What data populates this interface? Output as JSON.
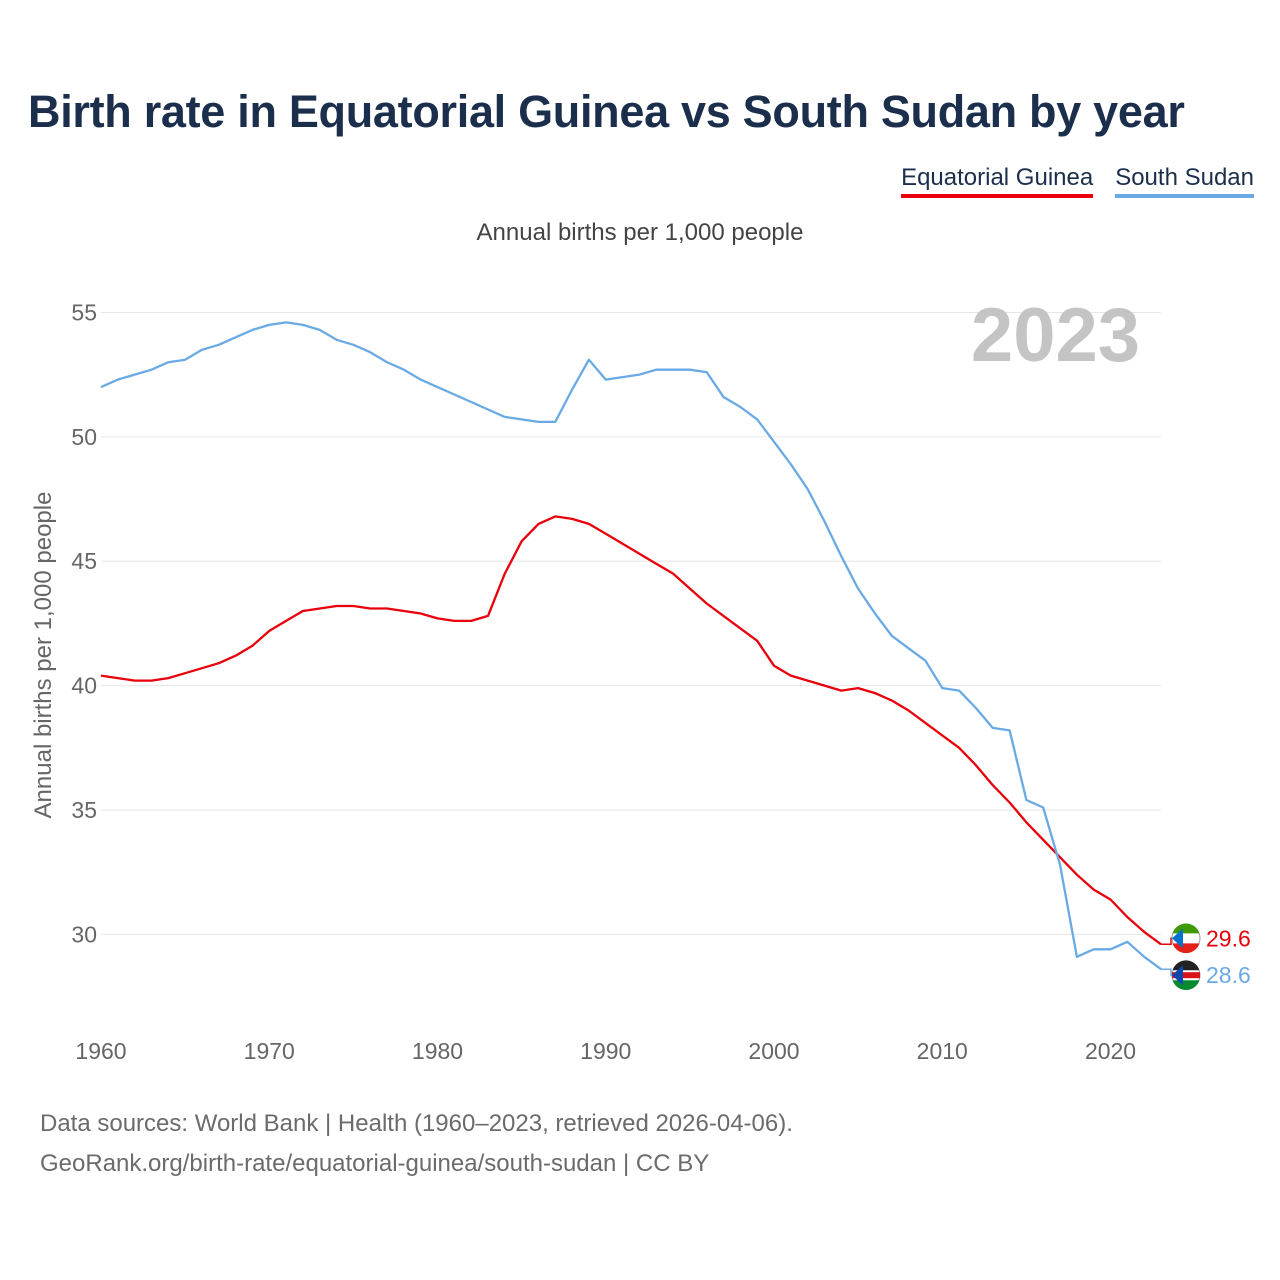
{
  "title": "Birth rate in Equatorial Guinea vs South Sudan by year",
  "legend": [
    {
      "label": "Equatorial Guinea",
      "color": "#e8000b"
    },
    {
      "label": "South Sudan",
      "color": "#6aaae4"
    }
  ],
  "footer": {
    "line1": "Data sources: World Bank | Health (1960–2023, retrieved 2026-04-06).",
    "line2": "GeoRank.org/birth-rate/equatorial-guinea/south-sudan | CC BY"
  },
  "chart_data": {
    "type": "line",
    "title": "Birth rate in Equatorial Guinea vs South Sudan by year",
    "subtitle": "Annual births per 1,000 people",
    "xlabel": "",
    "ylabel": "Annual births per 1,000 people",
    "year_label": "2023",
    "xlim": [
      1960,
      2023
    ],
    "ylim": [
      27,
      55.5
    ],
    "grid": true,
    "x_ticks": [
      1960,
      1970,
      1980,
      1990,
      2000,
      2010,
      2020
    ],
    "y_ticks": [
      30,
      35,
      40,
      45,
      50,
      55
    ],
    "x": [
      1960,
      1961,
      1962,
      1963,
      1964,
      1965,
      1966,
      1967,
      1968,
      1969,
      1970,
      1971,
      1972,
      1973,
      1974,
      1975,
      1976,
      1977,
      1978,
      1979,
      1980,
      1981,
      1982,
      1983,
      1984,
      1985,
      1986,
      1987,
      1988,
      1989,
      1990,
      1991,
      1992,
      1993,
      1994,
      1995,
      1996,
      1997,
      1998,
      1999,
      2000,
      2001,
      2002,
      2003,
      2004,
      2005,
      2006,
      2007,
      2008,
      2009,
      2010,
      2011,
      2012,
      2013,
      2014,
      2015,
      2016,
      2017,
      2018,
      2019,
      2020,
      2021,
      2022,
      2023
    ],
    "series": [
      {
        "name": "Equatorial Guinea",
        "color": "#e8000b",
        "end_label": "29.6",
        "values": [
          40.4,
          40.3,
          40.2,
          40.2,
          40.3,
          40.5,
          40.7,
          40.9,
          41.2,
          41.6,
          42.2,
          42.6,
          43.0,
          43.1,
          43.2,
          43.2,
          43.1,
          43.1,
          43.0,
          42.9,
          42.7,
          42.6,
          42.6,
          42.8,
          44.5,
          45.8,
          46.5,
          46.8,
          46.7,
          46.5,
          46.1,
          45.7,
          45.3,
          44.9,
          44.5,
          43.9,
          43.3,
          42.8,
          42.3,
          41.8,
          40.8,
          40.4,
          40.2,
          40.0,
          39.8,
          39.9,
          39.7,
          39.4,
          39.0,
          38.5,
          38.0,
          37.5,
          36.8,
          36.0,
          35.3,
          34.5,
          33.8,
          33.1,
          32.4,
          31.8,
          31.4,
          30.7,
          30.1,
          29.6
        ]
      },
      {
        "name": "South Sudan",
        "color": "#6aaae4",
        "end_label": "28.6",
        "values": [
          52.0,
          52.3,
          52.5,
          52.7,
          53.0,
          53.1,
          53.5,
          53.7,
          54.0,
          54.3,
          54.5,
          54.6,
          54.5,
          54.3,
          53.9,
          53.7,
          53.4,
          53.0,
          52.7,
          52.3,
          52.0,
          51.7,
          51.4,
          51.1,
          50.8,
          50.7,
          50.6,
          50.6,
          51.9,
          53.1,
          52.3,
          52.4,
          52.5,
          52.7,
          52.7,
          52.7,
          52.6,
          51.6,
          51.2,
          50.7,
          49.8,
          48.9,
          47.9,
          46.6,
          45.2,
          43.9,
          42.9,
          42.0,
          41.5,
          41.0,
          39.9,
          39.8,
          39.1,
          38.3,
          38.2,
          35.4,
          35.1,
          32.8,
          29.1,
          29.4,
          29.4,
          29.7,
          29.1,
          28.6
        ]
      }
    ]
  }
}
